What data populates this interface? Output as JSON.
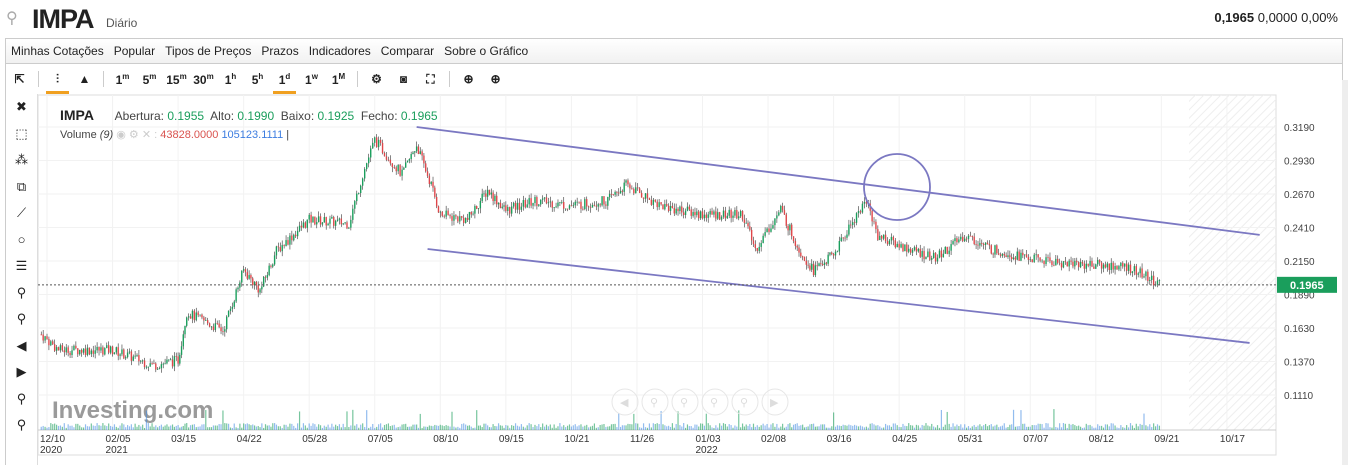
{
  "header": {
    "symbol": "IMPA",
    "period": "Diário",
    "price": "0,1965",
    "change": "0,0000",
    "change_pct": "0,00%"
  },
  "menu": [
    "Minhas Cotações",
    "Popular",
    "Tipos de Preços",
    "Prazos",
    "Indicadores",
    "Comparar",
    "Sobre o Gráfico"
  ],
  "toolbar": {
    "intervals": [
      {
        "n": "1",
        "u": "m"
      },
      {
        "n": "5",
        "u": "m"
      },
      {
        "n": "15",
        "u": "m"
      },
      {
        "n": "30",
        "u": "m"
      },
      {
        "n": "1",
        "u": "h"
      },
      {
        "n": "5",
        "u": "h"
      },
      {
        "n": "1",
        "u": "d"
      },
      {
        "n": "1",
        "u": "w"
      },
      {
        "n": "1",
        "u": "M"
      }
    ],
    "selected_interval": "1d",
    "selected_chart": "candlestick"
  },
  "legend": {
    "name": "IMPA",
    "open_label": "Abertura:",
    "open": "0.1955",
    "high_label": "Alto:",
    "high": "0.1990",
    "low_label": "Baixo:",
    "low": "0.1925",
    "close_label": "Fecho:",
    "close": "0.1965",
    "volume_label": "Volume",
    "volume_period": "(9)",
    "volume": "43828.0000",
    "volume_ma": "105123.1111"
  },
  "watermark": "Investing.com",
  "colors": {
    "up": "#1a9e5c",
    "down": "#e0464a",
    "trendline": "#7b78c2",
    "volume": "#9fc3ee",
    "price_tag": "#1a9e5c"
  },
  "chart_data": {
    "type": "candlestick",
    "ylim": [
      0.098,
      0.332
    ],
    "yticks": [
      "0.3190",
      "0.2930",
      "0.2670",
      "0.2410",
      "0.2150",
      "0.1890",
      "0.1630",
      "0.1370",
      "0.1110"
    ],
    "xticks": [
      {
        "d": "2020-12-10",
        "l": "12/10",
        "y": "2020"
      },
      {
        "d": "2021-02-05",
        "l": "02/05",
        "y": "2021"
      },
      {
        "d": "2021-03-15",
        "l": "03/15"
      },
      {
        "d": "2021-04-22",
        "l": "04/22"
      },
      {
        "d": "2021-05-28",
        "l": "05/28"
      },
      {
        "d": "2021-07-05",
        "l": "07/05"
      },
      {
        "d": "2021-08-10",
        "l": "08/10"
      },
      {
        "d": "2021-09-15",
        "l": "09/15"
      },
      {
        "d": "2021-10-21",
        "l": "10/21"
      },
      {
        "d": "2021-11-26",
        "l": "11/26"
      },
      {
        "d": "2022-01-03",
        "l": "01/03",
        "y": "2022"
      },
      {
        "d": "2022-02-08",
        "l": "02/08"
      },
      {
        "d": "2022-03-16",
        "l": "03/16"
      },
      {
        "d": "2022-04-25",
        "l": "04/25"
      },
      {
        "d": "2022-05-31",
        "l": "05/31"
      },
      {
        "d": "2022-07-07",
        "l": "07/07"
      },
      {
        "d": "2022-08-12",
        "l": "08/12"
      },
      {
        "d": "2022-09-21",
        "l": "09/21"
      },
      {
        "d": "2022-10-17",
        "l": "10/17"
      }
    ],
    "last_price": "0.1965",
    "approx_close": [
      [
        "2020-12-05",
        0.158
      ],
      [
        "2020-12-20",
        0.146
      ],
      [
        "2021-02-05",
        0.146
      ],
      [
        "2021-03-01",
        0.134
      ],
      [
        "2021-03-15",
        0.138
      ],
      [
        "2021-03-20",
        0.175
      ],
      [
        "2021-04-10",
        0.161
      ],
      [
        "2021-04-22",
        0.208
      ],
      [
        "2021-05-01",
        0.192
      ],
      [
        "2021-05-10",
        0.223
      ],
      [
        "2021-05-28",
        0.247
      ],
      [
        "2021-06-20",
        0.244
      ],
      [
        "2021-06-28",
        0.282
      ],
      [
        "2021-07-05",
        0.309
      ],
      [
        "2021-07-20",
        0.282
      ],
      [
        "2021-07-28",
        0.305
      ],
      [
        "2021-08-05",
        0.274
      ],
      [
        "2021-08-10",
        0.251
      ],
      [
        "2021-08-25",
        0.247
      ],
      [
        "2021-09-05",
        0.27
      ],
      [
        "2021-09-15",
        0.254
      ],
      [
        "2021-10-01",
        0.262
      ],
      [
        "2021-10-21",
        0.258
      ],
      [
        "2021-11-10",
        0.262
      ],
      [
        "2021-11-20",
        0.274
      ],
      [
        "2021-12-10",
        0.258
      ],
      [
        "2022-01-03",
        0.251
      ],
      [
        "2022-01-25",
        0.251
      ],
      [
        "2022-02-01",
        0.224
      ],
      [
        "2022-02-15",
        0.255
      ],
      [
        "2022-02-25",
        0.224
      ],
      [
        "2022-03-05",
        0.208
      ],
      [
        "2022-03-16",
        0.22
      ],
      [
        "2022-03-30",
        0.251
      ],
      [
        "2022-04-05",
        0.262
      ],
      [
        "2022-04-12",
        0.235
      ],
      [
        "2022-04-25",
        0.227
      ],
      [
        "2022-05-15",
        0.217
      ],
      [
        "2022-05-31",
        0.235
      ],
      [
        "2022-06-15",
        0.224
      ],
      [
        "2022-07-07",
        0.217
      ],
      [
        "2022-07-20",
        0.214
      ],
      [
        "2022-08-12",
        0.212
      ],
      [
        "2022-09-01",
        0.21
      ],
      [
        "2022-09-21",
        0.1965
      ]
    ],
    "trendlines": [
      {
        "from": [
          "2021-07-28",
          0.319
        ],
        "to": [
          "2022-10-30",
          0.2353
        ]
      },
      {
        "from": [
          "2021-08-03",
          0.2243
        ],
        "to": [
          "2022-10-26",
          0.1514
        ]
      }
    ]
  }
}
